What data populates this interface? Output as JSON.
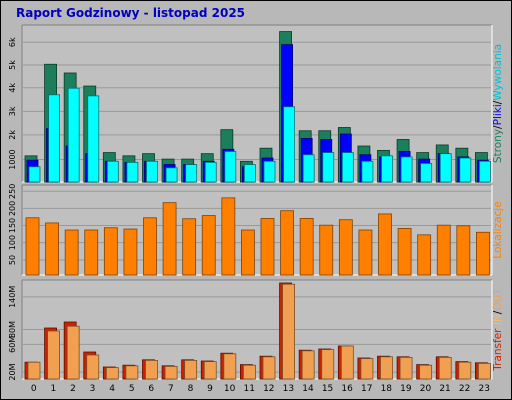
{
  "title": "Raport Godzinowy -  listopad 2025",
  "chart_data": [
    {
      "type": "bar",
      "name": "hits",
      "categories": [
        "0",
        "1",
        "2",
        "3",
        "4",
        "5",
        "6",
        "7",
        "8",
        "9",
        "10",
        "11",
        "12",
        "13",
        "14",
        "15",
        "16",
        "17",
        "18",
        "19",
        "20",
        "21",
        "22",
        "23"
      ],
      "y_ticks": [
        "1000",
        "2k",
        "3k",
        "4k",
        "5k",
        "6k"
      ],
      "ylim": [
        0,
        7200
      ],
      "series": [
        {
          "name": "Strony",
          "color": "#1a7f5a",
          "values": [
            1200,
            5400,
            5000,
            4400,
            1350,
            1200,
            1300,
            1050,
            1050,
            1300,
            2400,
            950,
            1550,
            6900,
            2350,
            2350,
            2500,
            1650,
            1450,
            1950,
            1350,
            1700,
            1550,
            1350
          ]
        },
        {
          "name": "Pliki",
          "color": "#0000ff",
          "values": [
            1000,
            2450,
            1650,
            1300,
            950,
            900,
            950,
            800,
            800,
            950,
            1500,
            700,
            1100,
            6300,
            2000,
            1950,
            2200,
            1250,
            1150,
            1400,
            1050,
            1300,
            1150,
            1000
          ]
        },
        {
          "name": "Wywolania",
          "color": "#00ffff",
          "values": [
            700,
            4000,
            4300,
            3950,
            950,
            900,
            950,
            650,
            800,
            900,
            1400,
            800,
            950,
            3450,
            1250,
            1350,
            1350,
            950,
            1200,
            1150,
            850,
            1300,
            1100,
            950
          ]
        }
      ],
      "legend": [
        "Strony",
        "/",
        "Pliki",
        "/",
        "Wywolania"
      ],
      "legend_colors": [
        "#1a7f5a",
        "#000000",
        "#0000ff",
        "#000000",
        "#00c0d0"
      ]
    },
    {
      "type": "bar",
      "name": "lokalizacje",
      "categories": [
        "0",
        "1",
        "2",
        "3",
        "4",
        "5",
        "6",
        "7",
        "8",
        "9",
        "10",
        "11",
        "12",
        "13",
        "14",
        "15",
        "16",
        "17",
        "18",
        "19",
        "20",
        "21",
        "22",
        "23"
      ],
      "y_ticks": [
        "50",
        "100",
        "150",
        "200",
        "250"
      ],
      "ylim": [
        0,
        280
      ],
      "series": [
        {
          "name": "Lokalizacje",
          "color": "#ff8000",
          "values": [
            178,
            162,
            140,
            140,
            147,
            143,
            178,
            225,
            175,
            185,
            240,
            140,
            176,
            200,
            176,
            155,
            172,
            140,
            190,
            145,
            125,
            155,
            153,
            133
          ]
        }
      ],
      "legend": [
        "Lokalizacje"
      ],
      "legend_colors": [
        "#ff8000"
      ]
    },
    {
      "type": "bar",
      "name": "transfer",
      "categories": [
        "0",
        "1",
        "2",
        "3",
        "4",
        "5",
        "6",
        "7",
        "8",
        "9",
        "10",
        "11",
        "12",
        "13",
        "14",
        "15",
        "16",
        "17",
        "18",
        "19",
        "20",
        "21",
        "22",
        "23"
      ],
      "y_ticks": [
        "20M",
        "60M",
        "80M",
        "140M"
      ],
      "ylim": [
        0,
        165
      ],
      "series": [
        {
          "name": "Transfer",
          "color": "#cc2200",
          "values": [
            28,
            85,
            95,
            45,
            20,
            23,
            32,
            22,
            32,
            30,
            43,
            24,
            38,
            160,
            48,
            50,
            55,
            35,
            38,
            37,
            24,
            37,
            29,
            27
          ]
        },
        {
          "name": "IN",
          "color": "#e8c070",
          "values": [
            0,
            0,
            0,
            0,
            0,
            0,
            0,
            0,
            0,
            0,
            0,
            0,
            0,
            0,
            0,
            0,
            0,
            0,
            0,
            0,
            0,
            0,
            0,
            0
          ]
        },
        {
          "name": "OUT",
          "color": "#f0a050",
          "values": [
            28,
            80,
            88,
            40,
            19,
            22,
            31,
            21,
            31,
            29,
            42,
            23,
            37,
            158,
            47,
            49,
            55,
            34,
            37,
            36,
            23,
            36,
            28,
            26
          ]
        }
      ],
      "legend": [
        "Transfer",
        "IN",
        "/",
        "OUT"
      ],
      "legend_colors": [
        "#cc2200",
        "#e8c070",
        "#000000",
        "#f0a050"
      ]
    }
  ]
}
